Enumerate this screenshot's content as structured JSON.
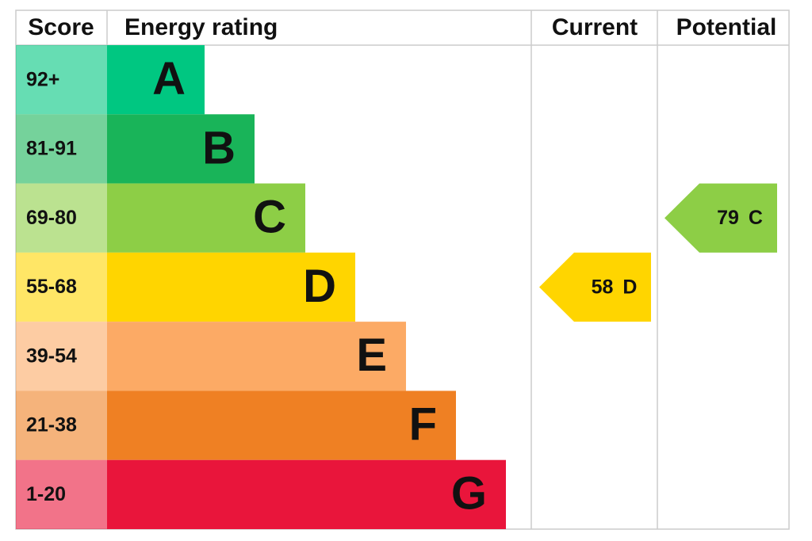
{
  "header": {
    "score": "Score",
    "energy_rating": "Energy rating",
    "current": "Current",
    "potential": "Potential"
  },
  "bands": [
    {
      "score": "92+",
      "letter": "A",
      "color": "#00c781"
    },
    {
      "score": "81-91",
      "letter": "B",
      "color": "#19b459"
    },
    {
      "score": "69-80",
      "letter": "C",
      "color": "#8dce46"
    },
    {
      "score": "55-68",
      "letter": "D",
      "color": "#ffd500"
    },
    {
      "score": "39-54",
      "letter": "E",
      "color": "#fcaa65"
    },
    {
      "score": "21-38",
      "letter": "F",
      "color": "#ef8023"
    },
    {
      "score": "1-20",
      "letter": "G",
      "color": "#e9153b"
    }
  ],
  "current": {
    "value": 58,
    "band": "D"
  },
  "potential": {
    "value": 79,
    "band": "C"
  }
}
